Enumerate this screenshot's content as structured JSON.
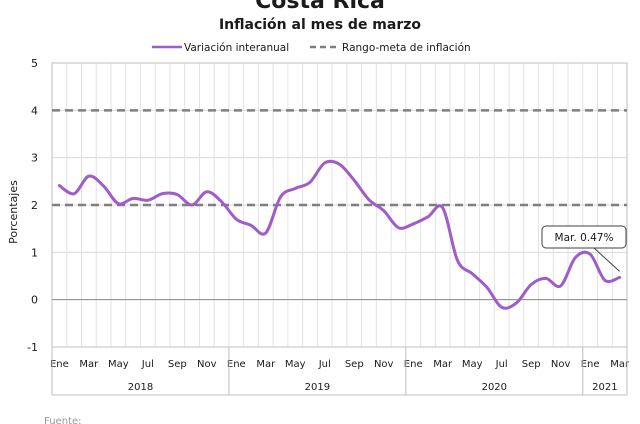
{
  "chart_data": {
    "type": "line",
    "title": "Costa Rica",
    "subtitle": "Inflación al mes de marzo",
    "ylabel": "Porcentajes",
    "xlabel": "",
    "ylim": [
      -1,
      5
    ],
    "yticks": [
      -1,
      0,
      1,
      2,
      3,
      4,
      5
    ],
    "grid": true,
    "legend_position": "top",
    "month_labels": [
      "Ene",
      "",
      "Mar",
      "",
      "May",
      "",
      "Jul",
      "",
      "Sep",
      "",
      "Nov",
      "",
      "Ene",
      "",
      "Mar",
      "",
      "May",
      "",
      "Jul",
      "",
      "Sep",
      "",
      "Nov",
      "",
      "Ene",
      "",
      "Mar",
      "",
      "May",
      "",
      "Jul",
      "",
      "Sep",
      "",
      "Nov",
      "",
      "Ene",
      "",
      "Mar"
    ],
    "years": [
      {
        "label": "2018",
        "start": 0,
        "end": 11
      },
      {
        "label": "2019",
        "start": 12,
        "end": 23
      },
      {
        "label": "2020",
        "start": 24,
        "end": 35
      },
      {
        "label": "2021",
        "start": 36,
        "end": 38
      }
    ],
    "series": [
      {
        "name": "Variación interanual",
        "color": "#a05cc8",
        "style": "solid",
        "values": [
          2.41,
          2.24,
          2.61,
          2.4,
          2.03,
          2.14,
          2.1,
          2.24,
          2.22,
          2.0,
          2.28,
          2.07,
          1.7,
          1.57,
          1.41,
          2.17,
          2.35,
          2.48,
          2.89,
          2.86,
          2.52,
          2.11,
          1.88,
          1.52,
          1.6,
          1.75,
          1.94,
          0.83,
          0.55,
          0.26,
          -0.16,
          -0.07,
          0.32,
          0.45,
          0.29,
          0.89,
          0.96,
          0.41,
          0.47
        ]
      },
      {
        "name": "Rango-meta de inflación",
        "color": "#7f7f7f",
        "style": "dashed",
        "values_lower": 2,
        "values_upper": 4
      }
    ],
    "annotations": [
      {
        "text": "Mar. 0.47%",
        "index": 38,
        "value": 0.47
      }
    ]
  },
  "footer": {
    "source_label": "Fuente:"
  }
}
